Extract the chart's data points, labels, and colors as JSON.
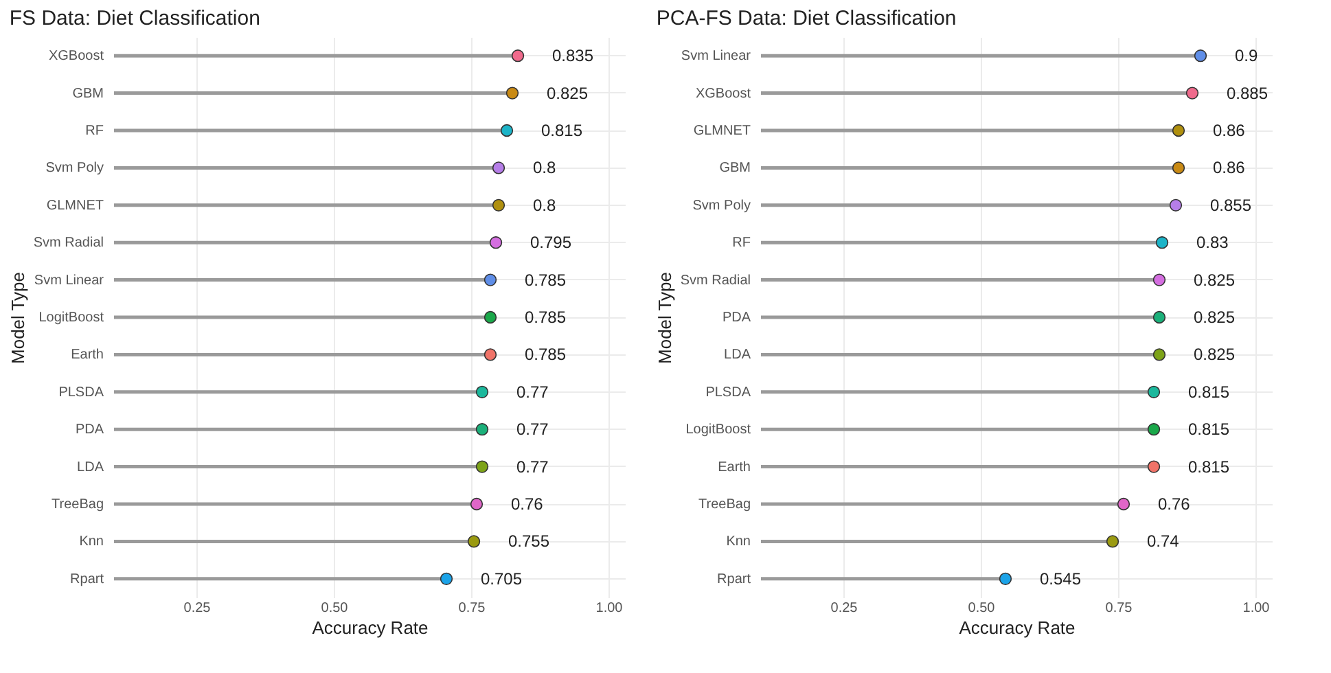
{
  "chart_data": [
    {
      "type": "lollipop",
      "orientation": "horizontal",
      "title": "FS Data: Diet Classification",
      "xlabel": "Accuracy Rate",
      "ylabel": "Model Type",
      "categories": [
        "XGBoost",
        "GBM",
        "RF",
        "Svm Poly",
        "GLMNET",
        "Svm Radial",
        "Svm Linear",
        "LogitBoost",
        "Earth",
        "PLSDA",
        "PDA",
        "LDA",
        "TreeBag",
        "Knn",
        "Rpart"
      ],
      "values": [
        0.835,
        0.825,
        0.815,
        0.8,
        0.8,
        0.795,
        0.785,
        0.785,
        0.785,
        0.77,
        0.77,
        0.77,
        0.76,
        0.755,
        0.705
      ],
      "colors": [
        "#ef6a8c",
        "#c98a14",
        "#1cb4c8",
        "#b67ee8",
        "#b0900e",
        "#d46ee0",
        "#5f8ee8",
        "#1aa84a",
        "#f07368",
        "#1bb89c",
        "#1bb07a",
        "#7da318",
        "#e066c8",
        "#9a9a10",
        "#1ba3e8"
      ],
      "xlim": [
        0.1,
        1.03
      ],
      "xticks": [
        {
          "value": 0.25,
          "label": "0.25"
        },
        {
          "value": 0.5,
          "label": "0.50"
        },
        {
          "value": 0.75,
          "label": "0.75"
        },
        {
          "value": 1,
          "label": "1.00"
        }
      ],
      "grid": true,
      "marker": "circle",
      "data_labels": true
    },
    {
      "type": "lollipop",
      "orientation": "horizontal",
      "title": "PCA-FS Data: Diet Classification",
      "xlabel": "Accuracy Rate",
      "ylabel": "Model Type",
      "categories": [
        "Svm Linear",
        "XGBoost",
        "GLMNET",
        "GBM",
        "Svm Poly",
        "RF",
        "Svm Radial",
        "PDA",
        "LDA",
        "PLSDA",
        "LogitBoost",
        "Earth",
        "TreeBag",
        "Knn",
        "Rpart"
      ],
      "values": [
        0.9,
        0.885,
        0.86,
        0.86,
        0.855,
        0.83,
        0.825,
        0.825,
        0.825,
        0.815,
        0.815,
        0.815,
        0.76,
        0.74,
        0.545
      ],
      "colors": [
        "#5f8ee8",
        "#ef6a8c",
        "#b0900e",
        "#c98a14",
        "#b67ee8",
        "#1cb4c8",
        "#d46ee0",
        "#1bb07a",
        "#7da318",
        "#1bb89c",
        "#1aa84a",
        "#f07368",
        "#e066c8",
        "#9a9a10",
        "#1ba3e8"
      ],
      "xlim": [
        0.1,
        1.03
      ],
      "xticks": [
        {
          "value": 0.25,
          "label": "0.25"
        },
        {
          "value": 0.5,
          "label": "0.50"
        },
        {
          "value": 0.75,
          "label": "0.75"
        },
        {
          "value": 1,
          "label": "1.00"
        }
      ],
      "grid": true,
      "marker": "circle",
      "data_labels": true
    }
  ]
}
